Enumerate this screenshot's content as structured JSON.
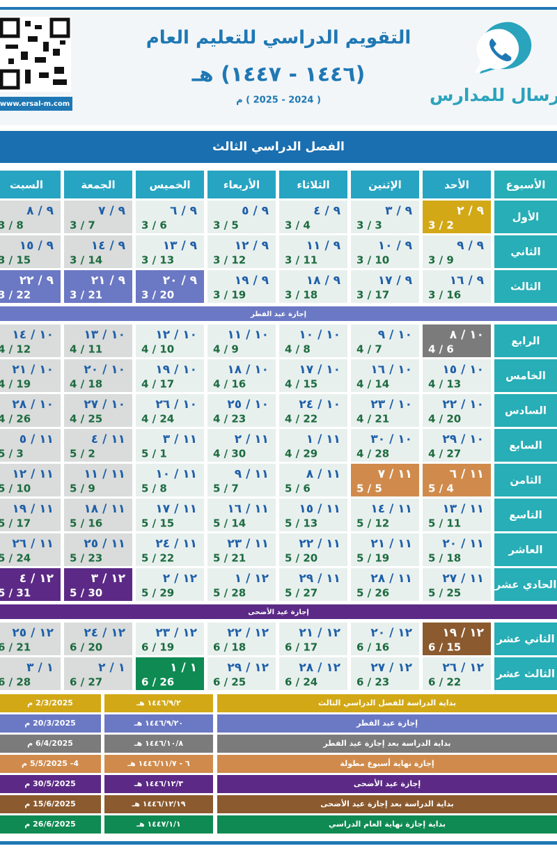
{
  "header": {
    "title": "التقويم الدراسي للتعليم العام",
    "hijri_year": "(١٤٤٦ - ١٤٤٧) هـ",
    "gregorian_year": "( 2024 - 2025 ) م",
    "brand": "رسال للمدارس",
    "website": "www.ersal-m.com"
  },
  "semester": "الفصل الدراسي الثالث",
  "table": {
    "headers": [
      "الأسبوع",
      "الأحد",
      "الإثنين",
      "الثلاثاء",
      "الأربعاء",
      "الخميس",
      "الجمعة",
      "السبت"
    ],
    "rows": [
      {
        "week": "الأول",
        "cells": [
          {
            "hijri": "٩ / ٢",
            "gregorian": "3 / 2",
            "color": "#d2a817"
          },
          {
            "hijri": "٩ / ٣",
            "gregorian": "3 / 3"
          },
          {
            "hijri": "٩ / ٤",
            "gregorian": "3 / 4"
          },
          {
            "hijri": "٩ / ٥",
            "gregorian": "3 / 5"
          },
          {
            "hijri": "٩ / ٦",
            "gregorian": "3 / 6"
          },
          {
            "hijri": "٩ / ٧",
            "gregorian": "3 / 7"
          },
          {
            "hijri": "٩ / ٨",
            "gregorian": "3 / 8"
          }
        ]
      },
      {
        "week": "الثاني",
        "cells": [
          {
            "hijri": "٩ / ٩",
            "gregorian": "3 / 9"
          },
          {
            "hijri": "٩ / ١٠",
            "gregorian": "3 / 10"
          },
          {
            "hijri": "٩ / ١١",
            "gregorian": "3 / 11"
          },
          {
            "hijri": "٩ / ١٢",
            "gregorian": "3 / 12"
          },
          {
            "hijri": "٩ / ١٣",
            "gregorian": "3 / 13"
          },
          {
            "hijri": "٩ / ١٤",
            "gregorian": "3 / 14"
          },
          {
            "hijri": "٩ / ١٥",
            "gregorian": "3 / 15"
          }
        ]
      },
      {
        "week": "الثالث",
        "cells": [
          {
            "hijri": "٩ / ١٦",
            "gregorian": "3 / 16"
          },
          {
            "hijri": "٩ / ١٧",
            "gregorian": "3 / 17"
          },
          {
            "hijri": "٩ / ١٨",
            "gregorian": "3 / 18"
          },
          {
            "hijri": "٩ / ١٩",
            "gregorian": "3 / 19"
          },
          {
            "hijri": "٩ / ٢٠",
            "gregorian": "3 / 20",
            "color": "#6b78c4"
          },
          {
            "hijri": "٩ / ٢١",
            "gregorian": "3 / 21",
            "color": "#6b78c4"
          },
          {
            "hijri": "٩ / ٢٢",
            "gregorian": "3 / 22",
            "color": "#6b78c4"
          }
        ]
      },
      {
        "holiday": "إجازة عيد الفطر",
        "color": "#6b78c4"
      },
      {
        "week": "الرابع",
        "cells": [
          {
            "hijri": "١٠ / ٨",
            "gregorian": "4 / 6",
            "color": "#7b7b7b"
          },
          {
            "hijri": "١٠ / ٩",
            "gregorian": "4 / 7"
          },
          {
            "hijri": "١٠ / ١٠",
            "gregorian": "4 / 8"
          },
          {
            "hijri": "١٠ / ١١",
            "gregorian": "4 / 9"
          },
          {
            "hijri": "١٠ / ١٢",
            "gregorian": "4 / 10"
          },
          {
            "hijri": "١٠ / ١٣",
            "gregorian": "4 / 11"
          },
          {
            "hijri": "١٠ / ١٤",
            "gregorian": "4 / 12"
          }
        ]
      },
      {
        "week": "الخامس",
        "cells": [
          {
            "hijri": "١٠ / ١٥",
            "gregorian": "4 / 13"
          },
          {
            "hijri": "١٠ / ١٦",
            "gregorian": "4 / 14"
          },
          {
            "hijri": "١٠ / ١٧",
            "gregorian": "4 / 15"
          },
          {
            "hijri": "١٠ / ١٨",
            "gregorian": "4 / 16"
          },
          {
            "hijri": "١٠ / ١٩",
            "gregorian": "4 / 17"
          },
          {
            "hijri": "١٠ / ٢٠",
            "gregorian": "4 / 18"
          },
          {
            "hijri": "١٠ / ٢١",
            "gregorian": "4 / 19"
          }
        ]
      },
      {
        "week": "السادس",
        "cells": [
          {
            "hijri": "١٠ / ٢٢",
            "gregorian": "4 / 20"
          },
          {
            "hijri": "١٠ / ٢٣",
            "gregorian": "4 / 21"
          },
          {
            "hijri": "١٠ / ٢٤",
            "gregorian": "4 / 22"
          },
          {
            "hijri": "١٠ / ٢٥",
            "gregorian": "4 / 23"
          },
          {
            "hijri": "١٠ / ٢٦",
            "gregorian": "4 / 24"
          },
          {
            "hijri": "١٠ / ٢٧",
            "gregorian": "4 / 25"
          },
          {
            "hijri": "١٠ / ٢٨",
            "gregorian": "4 / 26"
          }
        ]
      },
      {
        "week": "السابع",
        "cells": [
          {
            "hijri": "١٠ / ٢٩",
            "gregorian": "4 / 27"
          },
          {
            "hijri": "١٠ / ٣٠",
            "gregorian": "4 / 28"
          },
          {
            "hijri": "١١ / ١",
            "gregorian": "4 / 29"
          },
          {
            "hijri": "١١ / ٢",
            "gregorian": "4 / 30"
          },
          {
            "hijri": "١١ / ٣",
            "gregorian": "5 / 1"
          },
          {
            "hijri": "١١ / ٤",
            "gregorian": "5 / 2"
          },
          {
            "hijri": "١١ / ٥",
            "gregorian": "5 / 3"
          }
        ]
      },
      {
        "week": "الثامن",
        "cells": [
          {
            "hijri": "١١ / ٦",
            "gregorian": "5 / 4",
            "color": "#d08b4c"
          },
          {
            "hijri": "١١ / ٧",
            "gregorian": "5 / 5",
            "color": "#d08b4c"
          },
          {
            "hijri": "١١ / ٨",
            "gregorian": "5 / 6"
          },
          {
            "hijri": "١١ / ٩",
            "gregorian": "5 / 7"
          },
          {
            "hijri": "١١ / ١٠",
            "gregorian": "5 / 8"
          },
          {
            "hijri": "١١ / ١١",
            "gregorian": "5 / 9"
          },
          {
            "hijri": "١١ / ١٢",
            "gregorian": "5 / 10"
          }
        ]
      },
      {
        "week": "التاسع",
        "cells": [
          {
            "hijri": "١١ / ١٣",
            "gregorian": "5 / 11"
          },
          {
            "hijri": "١١ / ١٤",
            "gregorian": "5 / 12"
          },
          {
            "hijri": "١١ / ١٥",
            "gregorian": "5 / 13"
          },
          {
            "hijri": "١١ / ١٦",
            "gregorian": "5 / 14"
          },
          {
            "hijri": "١١ / ١٧",
            "gregorian": "5 / 15"
          },
          {
            "hijri": "١١ / ١٨",
            "gregorian": "5 / 16"
          },
          {
            "hijri": "١١ / ١٩",
            "gregorian": "5 / 17"
          }
        ]
      },
      {
        "week": "العاشر",
        "cells": [
          {
            "hijri": "١١ / ٢٠",
            "gregorian": "5 / 18"
          },
          {
            "hijri": "١١ / ٢١",
            "gregorian": "5 / 19"
          },
          {
            "hijri": "١١ / ٢٢",
            "gregorian": "5 / 20"
          },
          {
            "hijri": "١١ / ٢٣",
            "gregorian": "5 / 21"
          },
          {
            "hijri": "١١ / ٢٤",
            "gregorian": "5 / 22"
          },
          {
            "hijri": "١١ / ٢٥",
            "gregorian": "5 / 23"
          },
          {
            "hijri": "١١ / ٢٦",
            "gregorian": "5 / 24"
          }
        ]
      },
      {
        "week": "الحادي عشر",
        "cells": [
          {
            "hijri": "١١ / ٢٧",
            "gregorian": "5 / 25"
          },
          {
            "hijri": "١١ / ٢٨",
            "gregorian": "5 / 26"
          },
          {
            "hijri": "١١ / ٢٩",
            "gregorian": "5 / 27"
          },
          {
            "hijri": "١٢ / ١",
            "gregorian": "5 / 28"
          },
          {
            "hijri": "١٢ / ٢",
            "gregorian": "5 / 29"
          },
          {
            "hijri": "١٢ / ٣",
            "gregorian": "5 / 30",
            "color": "#5c2a86"
          },
          {
            "hijri": "١٢ / ٤",
            "gregorian": "5 / 31",
            "color": "#5c2a86"
          }
        ]
      },
      {
        "holiday": "إجازة عيد الأضحى",
        "color": "#5c2a86"
      },
      {
        "week": "الثاني عشر",
        "cells": [
          {
            "hijri": "١٢ / ١٩",
            "gregorian": "6 / 15",
            "color": "#8b5a2f"
          },
          {
            "hijri": "١٢ / ٢٠",
            "gregorian": "6 / 16"
          },
          {
            "hijri": "١٢ / ٢١",
            "gregorian": "6 / 17"
          },
          {
            "hijri": "١٢ / ٢٢",
            "gregorian": "6 / 18"
          },
          {
            "hijri": "١٢ / ٢٣",
            "gregorian": "6 / 19"
          },
          {
            "hijri": "١٢ / ٢٤",
            "gregorian": "6 / 20"
          },
          {
            "hijri": "١٢ / ٢٥",
            "gregorian": "6 / 21"
          }
        ]
      },
      {
        "week": "الثالث عشر",
        "cells": [
          {
            "hijri": "١٢ / ٢٦",
            "gregorian": "6 / 22"
          },
          {
            "hijri": "١٢ / ٢٧",
            "gregorian": "6 / 23"
          },
          {
            "hijri": "١٢ / ٢٨",
            "gregorian": "6 / 24"
          },
          {
            "hijri": "١٢ / ٢٩",
            "gregorian": "6 / 25"
          },
          {
            "hijri": "١ / ١",
            "gregorian": "6 / 26",
            "color": "#0e8a52"
          },
          {
            "hijri": "١ / ٢",
            "gregorian": "6 / 27"
          },
          {
            "hijri": "١ / ٣",
            "gregorian": "6 / 28"
          }
        ]
      }
    ]
  },
  "legend": [
    {
      "label": "بداية الدراسة للفصل الدراسي الثالث",
      "hijri": "١٤٤٦/٩/٢ هـ",
      "gregorian": "2/3/2025 م",
      "color": "#d2a817"
    },
    {
      "label": "إجازة عيد الفطر",
      "hijri": "١٤٤٦/٩/٢٠ هـ",
      "gregorian": "20/3/2025 م",
      "color": "#6b78c4"
    },
    {
      "label": "بداية الدراسة بعد إجازة عيد الفطر",
      "hijri": "١٤٤٦/١٠/٨ هـ",
      "gregorian": "6/4/2025 م",
      "color": "#7b7b7b"
    },
    {
      "label": "إجازة نهاية أسبوع مطولة",
      "hijri": "٦ - ١٤٤٦/١١/٧ هـ",
      "gregorian": "4- 5/5/2025 م",
      "color": "#d08b4c"
    },
    {
      "label": "إجازة عيد الأضحى",
      "hijri": "١٤٤٦/١٢/٣ هـ",
      "gregorian": "30/5/2025 م",
      "color": "#5c2a86"
    },
    {
      "label": "بداية الدراسة بعد إجازة عيد الأضحى",
      "hijri": "١٤٤٦/١٢/١٩ هـ",
      "gregorian": "15/6/2025 م",
      "color": "#8b5a2f"
    },
    {
      "label": "بداية إجازة نهاية العام الدراسي",
      "hijri": "١٤٤٧/١/١ هـ",
      "gregorian": "26/6/2025 م",
      "color": "#0e8a52"
    }
  ]
}
